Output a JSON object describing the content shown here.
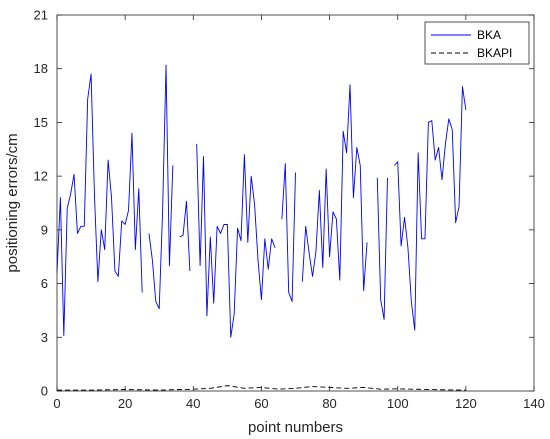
{
  "chart_data": {
    "type": "line",
    "title": "",
    "xlabel": "point numbers",
    "ylabel": "positioning errors/cm",
    "xlim": [
      0,
      140
    ],
    "ylim": [
      0,
      21
    ],
    "xticks": [
      0,
      20,
      40,
      60,
      80,
      100,
      120,
      140
    ],
    "yticks": [
      0,
      3,
      6,
      9,
      12,
      15,
      18,
      21
    ],
    "grid": false,
    "legend_position": "top-right",
    "series": [
      {
        "name": "BKA",
        "color": "#0000ff",
        "style": "solid",
        "x": [
          0,
          1,
          2,
          3,
          4,
          5,
          6,
          7,
          8,
          9,
          10,
          11,
          12,
          13,
          14,
          15,
          16,
          17,
          18,
          19,
          20,
          21,
          22,
          23,
          24,
          25,
          26,
          27,
          28,
          29,
          30,
          31,
          32,
          33,
          34,
          35,
          36,
          37,
          38,
          39,
          40,
          41,
          42,
          43,
          44,
          45,
          46,
          47,
          48,
          49,
          50,
          51,
          52,
          53,
          54,
          55,
          56,
          57,
          58,
          59,
          60,
          61,
          62,
          63,
          64,
          65,
          66,
          67,
          68,
          69,
          70,
          71,
          72,
          73,
          74,
          75,
          76,
          77,
          78,
          79,
          80,
          81,
          82,
          83,
          84,
          85,
          86,
          87,
          88,
          89,
          90,
          91,
          92,
          93,
          94,
          95,
          96,
          97,
          98,
          99,
          100,
          101,
          102,
          103,
          104,
          105,
          106,
          107,
          108,
          109,
          110,
          111,
          112,
          113,
          114,
          115,
          116,
          117,
          118,
          119,
          120,
          121
        ],
        "y": [
          6.6,
          10.8,
          3.1,
          10.2,
          11.0,
          12.1,
          8.8,
          9.2,
          9.2,
          16.3,
          17.7,
          10.9,
          6.1,
          9.0,
          7.9,
          12.9,
          10.8,
          6.7,
          6.4,
          9.5,
          9.3,
          10.1,
          14.4,
          7.9,
          11.3,
          5.5,
          null,
          8.8,
          7.3,
          5.0,
          4.6,
          10.1,
          18.2,
          7.0,
          12.6,
          null,
          8.6,
          8.7,
          10.6,
          6.7,
          null,
          13.8,
          7.0,
          13.1,
          4.2,
          8.6,
          4.9,
          9.2,
          8.8,
          9.3,
          9.3,
          3.0,
          4.3,
          9.1,
          8.4,
          13.2,
          8.3,
          12.0,
          10.4,
          7.3,
          5.1,
          8.5,
          6.8,
          8.5,
          8.0,
          null,
          9.6,
          12.7,
          5.5,
          5.0,
          12.2,
          null,
          6.1,
          9.2,
          7.7,
          6.4,
          7.8,
          11.2,
          6.9,
          12.4,
          7.5,
          10.0,
          9.6,
          6.2,
          14.5,
          13.3,
          17.1,
          10.8,
          13.6,
          12.6,
          5.6,
          8.3,
          null,
          null,
          11.9,
          5.1,
          4.0,
          11.9,
          null,
          12.6,
          12.8,
          8.1,
          9.7,
          8.0,
          5.0,
          3.4,
          13.3,
          8.5,
          8.5,
          15.0,
          15.1,
          12.9,
          13.6,
          11.8,
          13.8,
          15.2,
          14.6,
          9.4,
          10.3,
          17.0,
          15.7,
          null
        ]
      },
      {
        "name": "BKAPI",
        "color": "#000000",
        "style": "dashed",
        "x": [
          0,
          10,
          20,
          30,
          40,
          45,
          50,
          55,
          60,
          65,
          70,
          75,
          80,
          85,
          90,
          95,
          100,
          105,
          110,
          115,
          120
        ],
        "y": [
          0.05,
          0.05,
          0.08,
          0.05,
          0.1,
          0.15,
          0.3,
          0.15,
          0.2,
          0.1,
          0.15,
          0.25,
          0.2,
          0.15,
          0.2,
          0.1,
          0.12,
          0.1,
          0.08,
          0.06,
          0.05
        ]
      }
    ]
  }
}
